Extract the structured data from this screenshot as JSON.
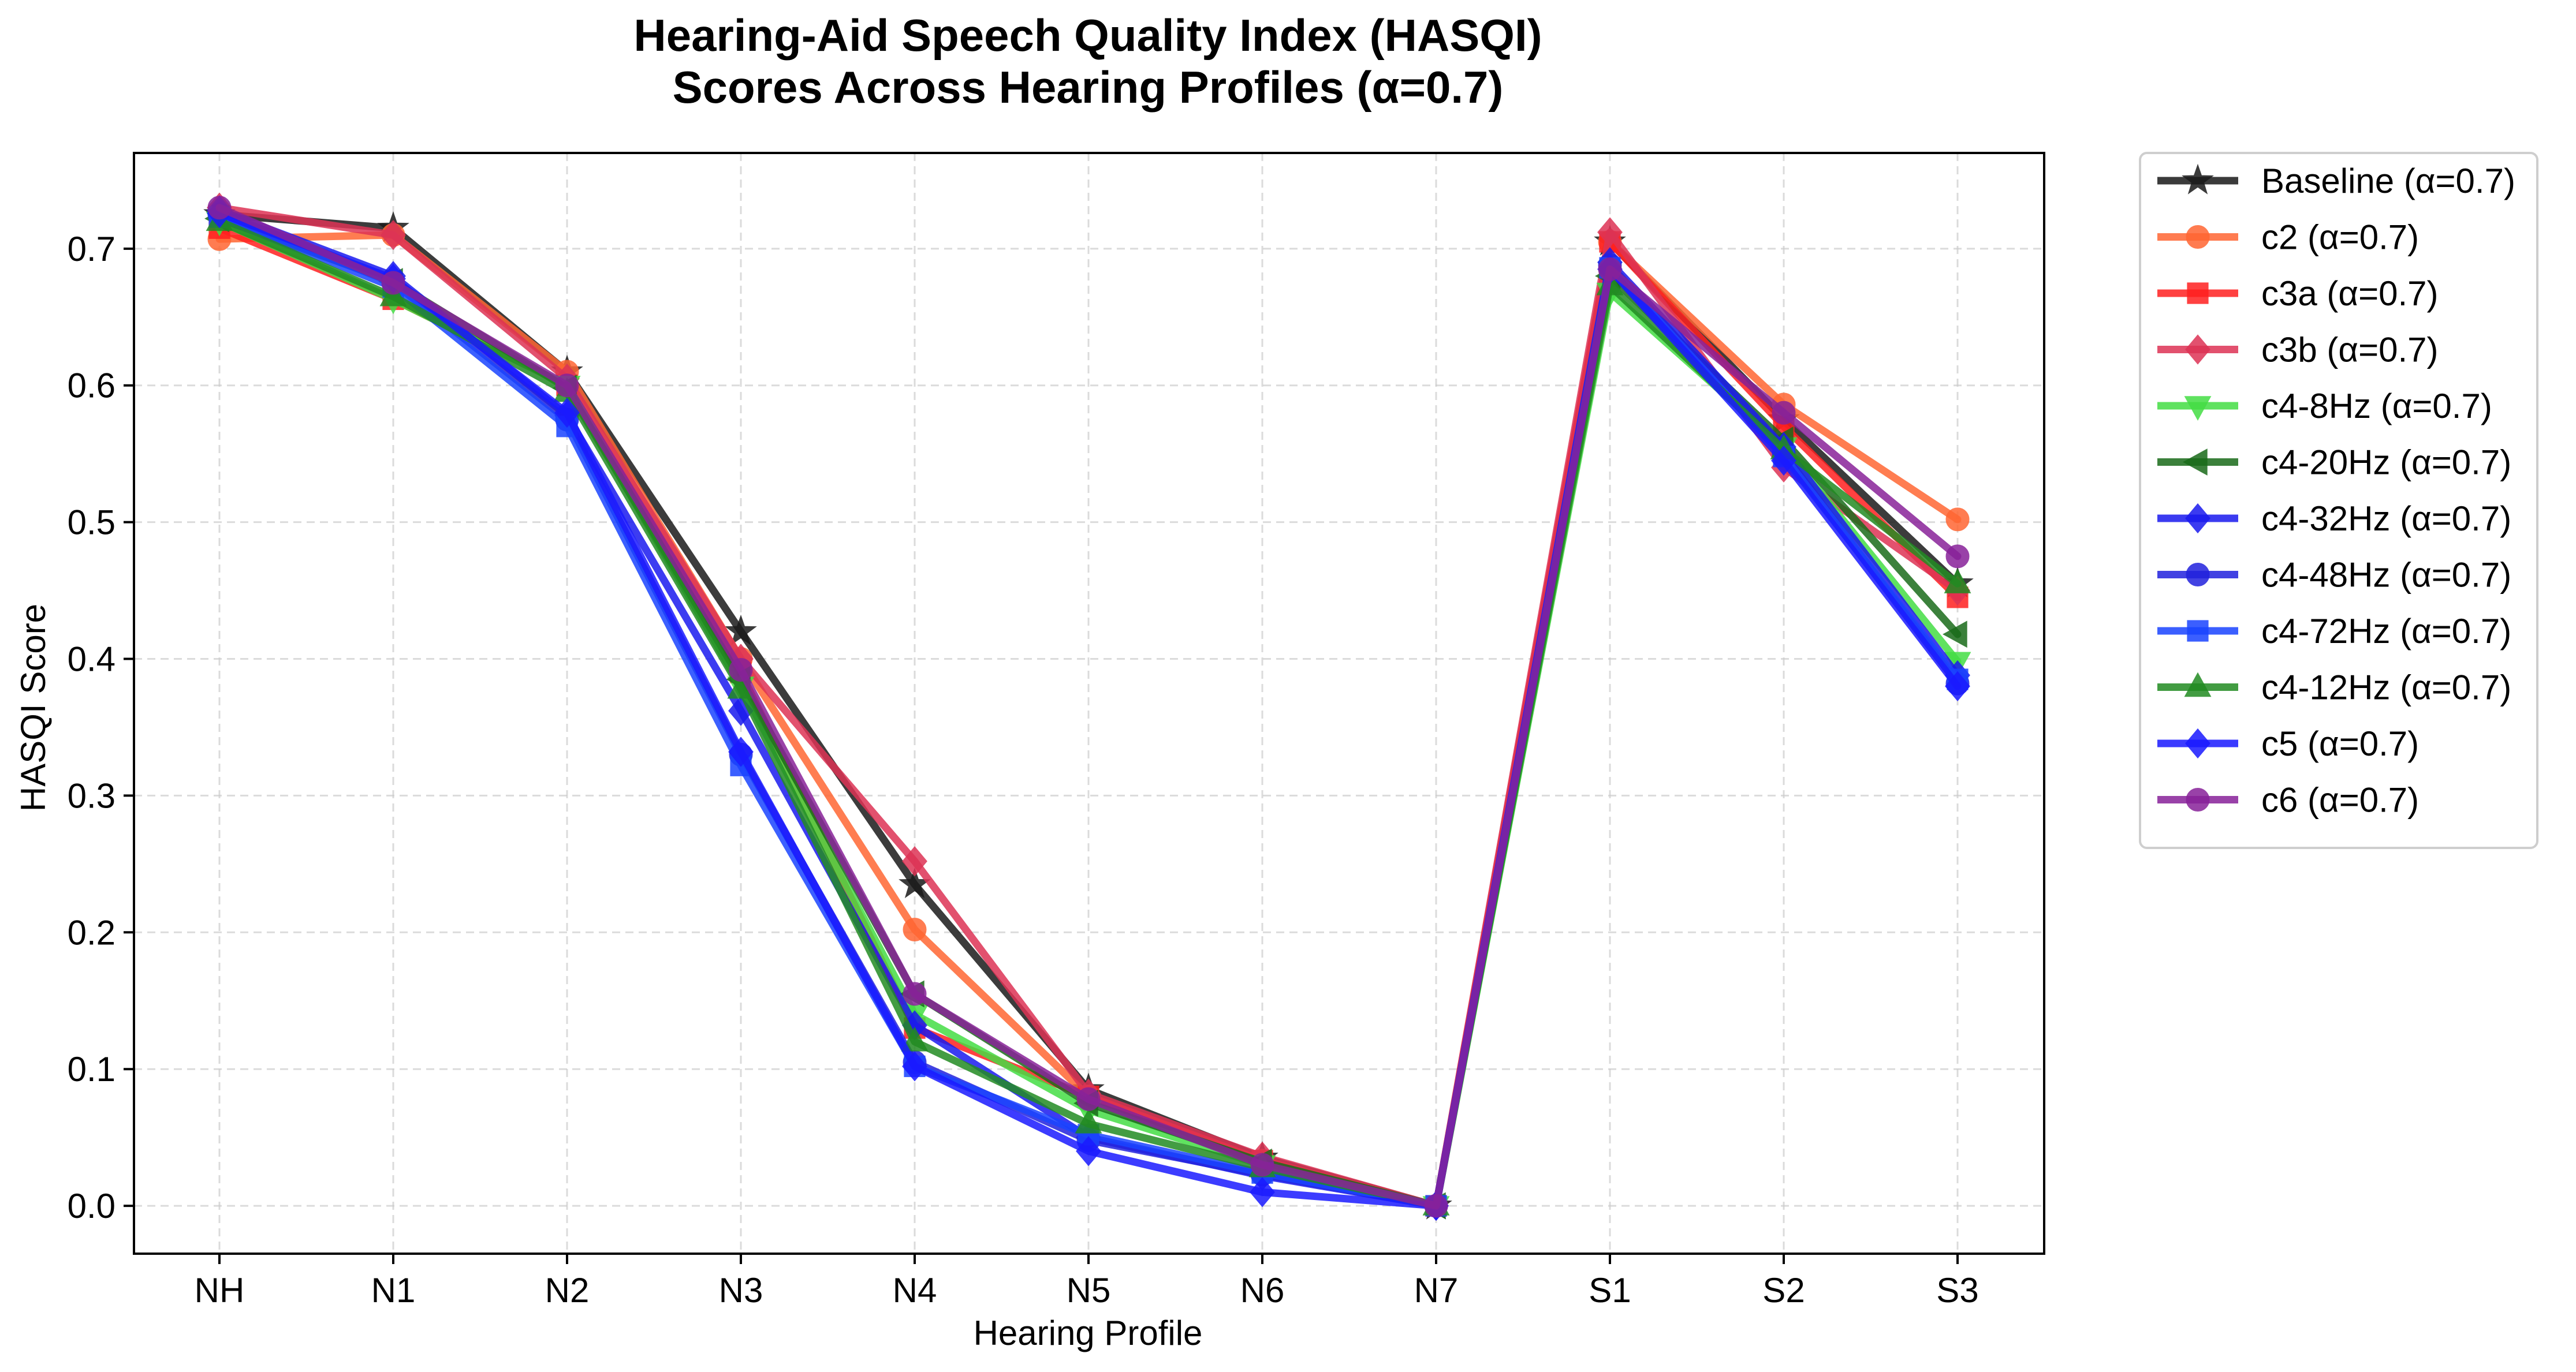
{
  "chart_data": {
    "type": "line",
    "title": "Hearing-Aid Speech Quality Index (HASQI)",
    "subtitle": "Scores Across Hearing Profiles (α=0.7)",
    "xlabel": "Hearing Profile",
    "ylabel": "HASQI Score",
    "categories": [
      "NH",
      "N1",
      "N2",
      "N3",
      "N4",
      "N5",
      "N6",
      "N7",
      "S1",
      "S2",
      "S3"
    ],
    "ylim": [
      -0.035,
      0.77
    ],
    "yticks": [
      "0.0",
      "0.1",
      "0.2",
      "0.3",
      "0.4",
      "0.5",
      "0.6",
      "0.7"
    ],
    "grid": true,
    "legend_position": "outside-right",
    "series": [
      {
        "name": "Baseline (α=0.7)",
        "color": "#1a1a1a",
        "marker": "star",
        "values": [
          0.725,
          0.715,
          0.61,
          0.42,
          0.235,
          0.085,
          0.035,
          0.0,
          0.705,
          0.575,
          0.455
        ]
      },
      {
        "name": "c2 (α=0.7)",
        "color": "#ff6633",
        "marker": "circle",
        "values": [
          0.707,
          0.71,
          0.61,
          0.4,
          0.202,
          0.08,
          0.033,
          0.0,
          0.705,
          0.586,
          0.502
        ]
      },
      {
        "name": "c3a (α=0.7)",
        "color": "#ff2020",
        "marker": "square",
        "values": [
          0.715,
          0.663,
          0.6,
          0.39,
          0.13,
          0.08,
          0.033,
          0.0,
          0.705,
          0.57,
          0.445
        ]
      },
      {
        "name": "c3b (α=0.7)",
        "color": "#dd3355",
        "marker": "diamond",
        "values": [
          0.73,
          0.71,
          0.605,
          0.4,
          0.252,
          0.082,
          0.036,
          0.0,
          0.712,
          0.54,
          0.45
        ]
      },
      {
        "name": "c4-8Hz (α=0.7)",
        "color": "#44dd44",
        "marker": "triangle-down",
        "values": [
          0.72,
          0.663,
          0.6,
          0.38,
          0.14,
          0.07,
          0.03,
          0.0,
          0.668,
          0.555,
          0.398
        ]
      },
      {
        "name": "c4-20Hz (α=0.7)",
        "color": "#1a6b1a",
        "marker": "triangle-left",
        "values": [
          0.722,
          0.676,
          0.598,
          0.385,
          0.155,
          0.075,
          0.032,
          0.0,
          0.68,
          0.56,
          0.418
        ]
      },
      {
        "name": "c4-32Hz (α=0.7)",
        "color": "#1a1aee",
        "marker": "diamond",
        "values": [
          0.728,
          0.68,
          0.578,
          0.362,
          0.132,
          0.05,
          0.022,
          0.0,
          0.69,
          0.555,
          0.388
        ]
      },
      {
        "name": "c4-48Hz (α=0.7)",
        "color": "#2222dd",
        "marker": "circle",
        "values": [
          0.725,
          0.675,
          0.575,
          0.33,
          0.105,
          0.048,
          0.023,
          0.0,
          0.688,
          0.55,
          0.382
        ]
      },
      {
        "name": "c4-72Hz (α=0.7)",
        "color": "#1a44ff",
        "marker": "square",
        "values": [
          0.723,
          0.672,
          0.57,
          0.322,
          0.102,
          0.052,
          0.024,
          0.0,
          0.686,
          0.548,
          0.385
        ]
      },
      {
        "name": "c4-12Hz (α=0.7)",
        "color": "#228b22",
        "marker": "triangle-up",
        "values": [
          0.72,
          0.665,
          0.595,
          0.378,
          0.12,
          0.06,
          0.028,
          0.0,
          0.673,
          0.553,
          0.455
        ]
      },
      {
        "name": "c5 (α=0.7)",
        "color": "#1a1aff",
        "marker": "diamond",
        "values": [
          0.726,
          0.678,
          0.58,
          0.332,
          0.102,
          0.04,
          0.01,
          0.0,
          0.685,
          0.545,
          0.38
        ]
      },
      {
        "name": "c6 (α=0.7)",
        "color": "#882299",
        "marker": "circle",
        "values": [
          0.73,
          0.675,
          0.6,
          0.392,
          0.155,
          0.078,
          0.03,
          0.0,
          0.685,
          0.58,
          0.475
        ]
      }
    ]
  }
}
